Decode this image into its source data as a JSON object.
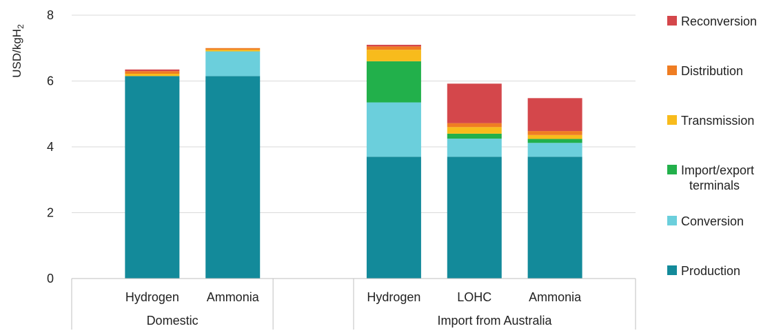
{
  "chart_data": {
    "type": "bar",
    "stacked": true,
    "ylabel": "USD/kgH",
    "ylabel_subscript": "2",
    "ylim": [
      0,
      8
    ],
    "yticks": [
      "0",
      "2",
      "4",
      "6",
      "8"
    ],
    "grid": true,
    "legend_position": "right",
    "groups": [
      {
        "label": "Domestic",
        "categories": [
          "Hydrogen",
          "Ammonia"
        ]
      },
      {
        "label": "",
        "categories": []
      },
      {
        "label": "Import from Australia",
        "categories": [
          "Hydrogen",
          "LOHC",
          "Ammonia"
        ]
      }
    ],
    "categories": [
      "Hydrogen",
      "Ammonia",
      "Hydrogen",
      "LOHC",
      "Ammonia"
    ],
    "series": [
      {
        "name": "Production",
        "color": "#138a9a",
        "values": [
          6.15,
          6.15,
          3.7,
          3.7,
          3.7
        ]
      },
      {
        "name": "Conversion",
        "color": "#6bcfdc",
        "values": [
          0.0,
          0.75,
          1.65,
          0.55,
          0.42
        ]
      },
      {
        "name": "Import/export terminals",
        "color": "#22b04b",
        "values": [
          0.0,
          0.0,
          1.25,
          0.15,
          0.12
        ]
      },
      {
        "name": "Transmission",
        "color": "#f8bb1c",
        "values": [
          0.07,
          0.05,
          0.35,
          0.2,
          0.12
        ]
      },
      {
        "name": "Distribution",
        "color": "#ef7d22",
        "values": [
          0.08,
          0.05,
          0.1,
          0.12,
          0.12
        ]
      },
      {
        "name": "Reconversion",
        "color": "#d4474b",
        "values": [
          0.05,
          0.0,
          0.05,
          1.2,
          1.0
        ]
      }
    ],
    "legend_order": [
      {
        "name": "Reconversion",
        "lines": [
          "Reconversion"
        ],
        "color": "#d4474b"
      },
      {
        "name": "Distribution",
        "lines": [
          "Distribution"
        ],
        "color": "#ef7d22"
      },
      {
        "name": "Transmission",
        "lines": [
          "Transmission"
        ],
        "color": "#f8bb1c"
      },
      {
        "name": "Import/export terminals",
        "lines": [
          "Import/export",
          "terminals"
        ],
        "color": "#22b04b"
      },
      {
        "name": "Conversion",
        "lines": [
          "Conversion"
        ],
        "color": "#6bcfdc"
      },
      {
        "name": "Production",
        "lines": [
          "Production"
        ],
        "color": "#138a9a"
      }
    ],
    "colors": {
      "grid": "#d9d9d9",
      "axis": "#bfbfbf",
      "text": "#222222"
    }
  }
}
